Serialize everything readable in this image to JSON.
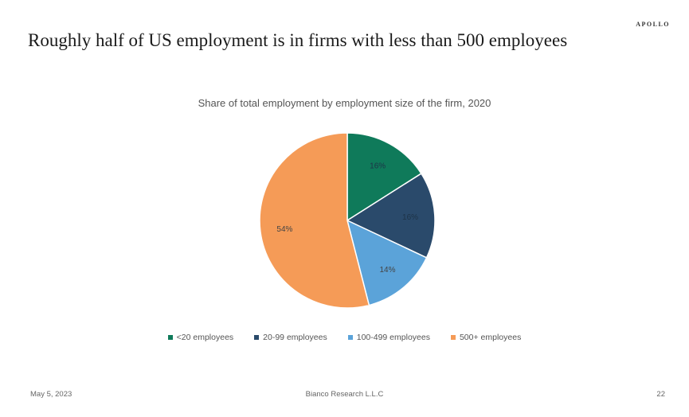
{
  "brand": "APOLLO",
  "headline": "Roughly half of US employment is in firms with less than 500 employees",
  "chart_data": {
    "type": "pie",
    "title": "Share of total employment by employment size of the firm, 2020",
    "categories": [
      "<20 employees",
      "20-99 employees",
      "100-499 employees",
      "500+ employees"
    ],
    "values": [
      16,
      16,
      14,
      54
    ],
    "data_labels": [
      "16%",
      "16%",
      "14%",
      "54%"
    ],
    "colors": [
      "#0f7a5a",
      "#2a4a6b",
      "#5ba3d9",
      "#f59b57"
    ],
    "legend_position": "bottom"
  },
  "footer": {
    "date": "May 5, 2023",
    "source": "Bianco Research L.L.C",
    "page": "22"
  }
}
